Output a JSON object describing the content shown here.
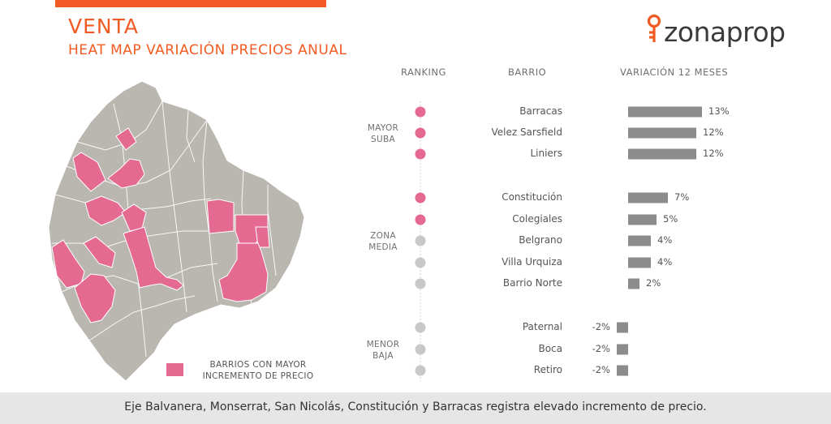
{
  "header": {
    "title": "VENTA",
    "subtitle": "HEAT MAP VARIACIÓN PRECIOS ANUAL",
    "brand": "zonaprop"
  },
  "colors": {
    "accent": "#f15a22",
    "highlight": "#e46a92",
    "neutral_dot": "#c8c8c8",
    "bar": "#8c8c8c",
    "map_gray": "#b9b7b0"
  },
  "map": {
    "legend": "BARRIOS CON MAYOR INCREMENTO DE PRECIO"
  },
  "chart_data": {
    "type": "bar",
    "orientation": "horizontal",
    "column_headers": [
      "RANKING",
      "BARRIO",
      "VARIACIÓN 12 MESES"
    ],
    "groups": [
      {
        "label": "MAYOR SUBA",
        "rows": [
          {
            "barrio": "Barracas",
            "value": 13,
            "label": "13%",
            "highlight": true
          },
          {
            "barrio": "Velez Sarsfield",
            "value": 12,
            "label": "12%",
            "highlight": true
          },
          {
            "barrio": "Liniers",
            "value": 12,
            "label": "12%",
            "highlight": true
          }
        ]
      },
      {
        "label": "ZONA MEDIA",
        "rows": [
          {
            "barrio": "Constitución",
            "value": 7,
            "label": "7%",
            "highlight": true
          },
          {
            "barrio": "Colegiales",
            "value": 5,
            "label": "5%",
            "highlight": true
          },
          {
            "barrio": "Belgrano",
            "value": 4,
            "label": "4%",
            "highlight": false
          },
          {
            "barrio": "Villa Urquiza",
            "value": 4,
            "label": "4%",
            "highlight": false
          },
          {
            "barrio": "Barrio Norte",
            "value": 2,
            "label": "2%",
            "highlight": false
          }
        ]
      },
      {
        "label": "MENOR BAJA",
        "rows": [
          {
            "barrio": "Paternal",
            "value": -2,
            "label": "-2%",
            "highlight": false
          },
          {
            "barrio": "Boca",
            "value": -2,
            "label": "-2%",
            "highlight": false
          },
          {
            "barrio": "Retiro",
            "value": -2,
            "label": "-2%",
            "highlight": false
          }
        ]
      }
    ]
  },
  "footer": {
    "text": "Eje Balvanera, Monserrat, San Nicolás, Constitución y Barracas registra elevado incremento de precio."
  }
}
